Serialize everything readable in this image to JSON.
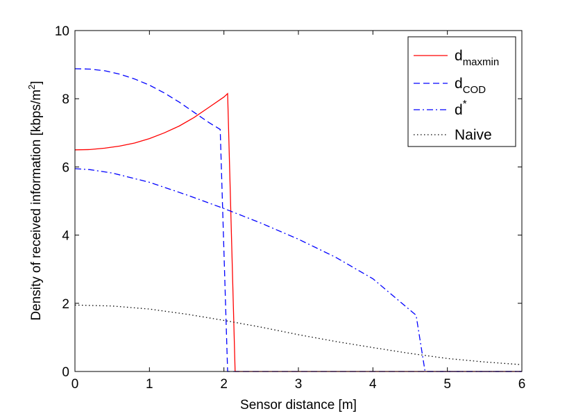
{
  "chart_data": {
    "type": "line",
    "title": "",
    "xlabel": "Sensor distance [m]",
    "ylabel": {
      "main": "Density of received information [kbps/m",
      "sup": "2",
      "end": "]"
    },
    "xlim": [
      0,
      6
    ],
    "ylim": [
      0,
      10
    ],
    "xticks": [
      0,
      1,
      2,
      3,
      4,
      5,
      6
    ],
    "yticks": [
      0,
      2,
      4,
      6,
      8,
      10
    ],
    "grid": false,
    "legend_position": "top-right",
    "series": [
      {
        "name": "d_maxmin",
        "legend": {
          "base": "d",
          "sub": "maxmin",
          "sup": ""
        },
        "color": "#ff0000",
        "style": "solid",
        "x": [
          0,
          0.2,
          0.4,
          0.6,
          0.8,
          1.0,
          1.2,
          1.4,
          1.6,
          1.8,
          2.0,
          2.05,
          2.15,
          6
        ],
        "y": [
          6.5,
          6.51,
          6.55,
          6.61,
          6.7,
          6.83,
          7.0,
          7.2,
          7.45,
          7.75,
          8.05,
          8.15,
          0,
          0
        ]
      },
      {
        "name": "d_COD",
        "legend": {
          "base": "d",
          "sub": "COD",
          "sup": ""
        },
        "color": "#0000ff",
        "style": "dashed",
        "x": [
          0,
          0.2,
          0.4,
          0.6,
          0.8,
          1.0,
          1.2,
          1.4,
          1.6,
          1.8,
          1.95,
          2.05,
          6
        ],
        "y": [
          8.88,
          8.87,
          8.82,
          8.72,
          8.58,
          8.4,
          8.17,
          7.9,
          7.6,
          7.3,
          7.1,
          0,
          0
        ]
      },
      {
        "name": "d*",
        "legend": {
          "base": "d",
          "sub": "",
          "sup": "*"
        },
        "color": "#0000ff",
        "style": "dashdot",
        "x": [
          0,
          0.2,
          0.5,
          1.0,
          1.5,
          2.0,
          2.5,
          3.0,
          3.5,
          4.0,
          4.58,
          4.7,
          6
        ],
        "y": [
          5.95,
          5.92,
          5.82,
          5.55,
          5.18,
          4.78,
          4.35,
          3.88,
          3.35,
          2.72,
          1.65,
          0,
          0
        ]
      },
      {
        "name": "Naive",
        "legend": {
          "base": "Naive",
          "sub": "",
          "sup": ""
        },
        "color": "#000000",
        "style": "dotted",
        "x": [
          0,
          0.5,
          1.0,
          1.5,
          2.0,
          2.5,
          3.0,
          3.5,
          4.0,
          4.5,
          5.0,
          5.5,
          6.0
        ],
        "y": [
          1.95,
          1.92,
          1.83,
          1.68,
          1.5,
          1.3,
          1.08,
          0.88,
          0.7,
          0.53,
          0.38,
          0.28,
          0.2
        ]
      }
    ]
  }
}
